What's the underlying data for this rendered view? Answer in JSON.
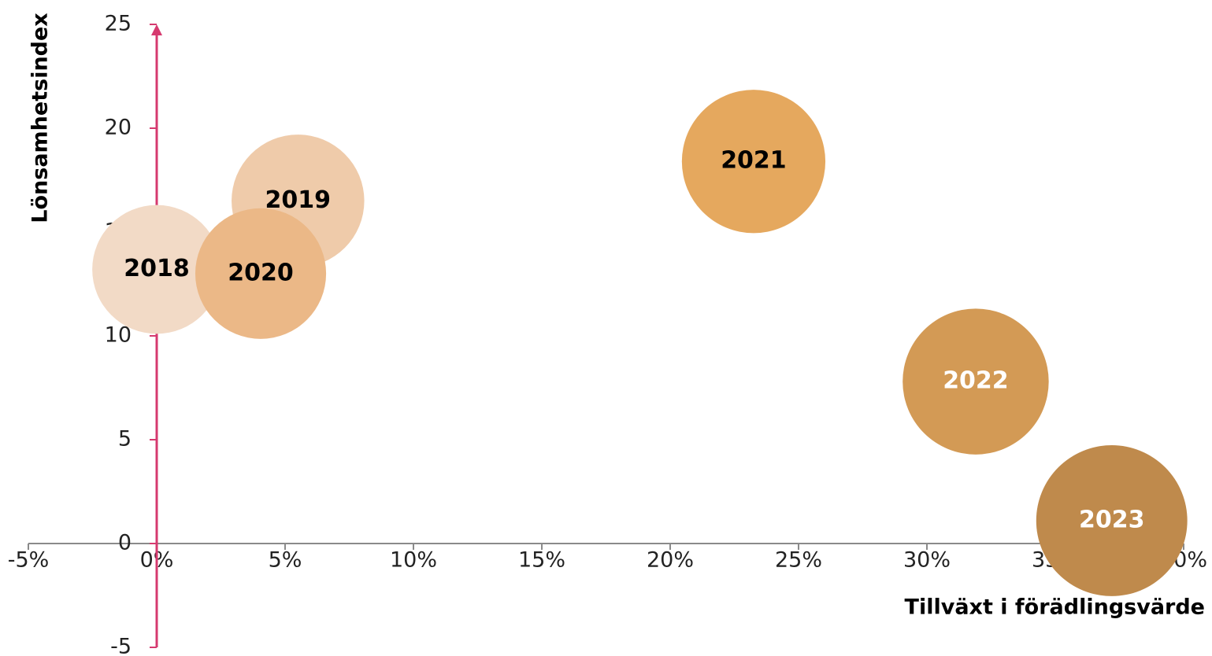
{
  "chart_data": {
    "type": "bubble",
    "x_label": "Tillväxt i förädlingsvärde",
    "y_label": "Lönsamhetsindex",
    "labels": [
      "2018",
      "2019",
      "2020",
      "2021",
      "2022",
      "2023"
    ],
    "x": [
      0,
      5.5,
      4.05,
      23.25,
      31.9,
      37.2
    ],
    "values": [
      13.2,
      16.5,
      13.0,
      18.4,
      7.8,
      1.1
    ],
    "sizes": [
      67,
      71,
      69,
      83,
      86,
      92
    ],
    "colors": [
      "#f2dac6",
      "#efcbaa",
      "#ebb887",
      "#e5a85e",
      "#d39a55",
      "#bf8a4c"
    ],
    "label_colors": [
      "#000000",
      "#000000",
      "#000000",
      "#000000",
      "#ffffff",
      "#ffffff"
    ],
    "xlim": [
      -5,
      40
    ],
    "xticks": [
      {
        "value": -5,
        "label": "-5%"
      },
      {
        "value": 0,
        "label": "0%"
      },
      {
        "value": 5,
        "label": "5%"
      },
      {
        "value": 10,
        "label": "10%"
      },
      {
        "value": 15,
        "label": "15%"
      },
      {
        "value": 20,
        "label": "20%"
      },
      {
        "value": 25,
        "label": "25%"
      },
      {
        "value": 30,
        "label": "30%"
      },
      {
        "value": 35,
        "label": "35%"
      },
      {
        "value": 40,
        "label": "40%"
      }
    ],
    "ylim": [
      -5,
      25
    ],
    "yticks": [
      -5,
      0,
      5,
      10,
      15,
      20,
      25
    ],
    "y_axis_color": "#d63a6f",
    "x_axis_color": "#8a8a8a",
    "grid": false
  }
}
